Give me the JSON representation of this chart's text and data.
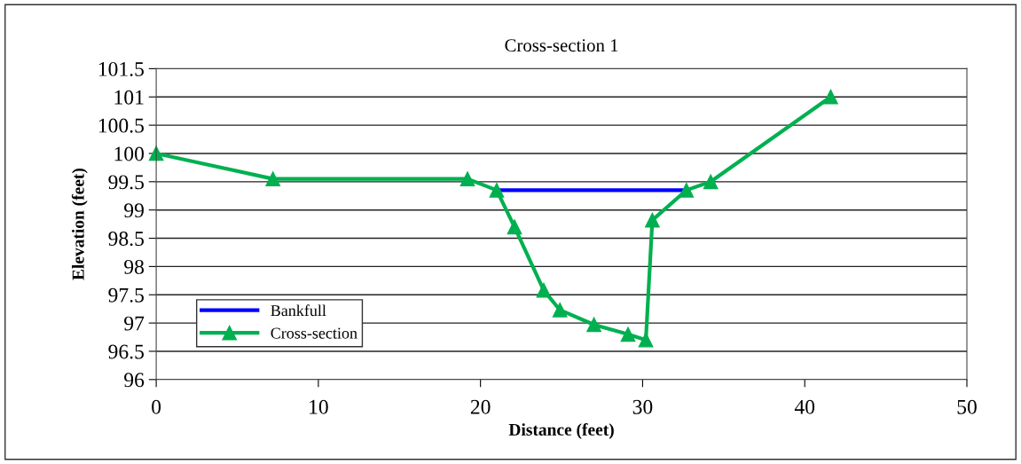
{
  "chart_data": {
    "type": "line",
    "title": "Cross-section 1",
    "xlabel": "Distance (feet)",
    "ylabel": "Elevation (feet)",
    "series": [
      {
        "name": "Bankfull",
        "color": "#0000ff",
        "x": [
          21.0,
          32.7
        ],
        "values": [
          99.35,
          99.35
        ],
        "marker": "none"
      },
      {
        "name": "Cross-section",
        "color": "#00b050",
        "x": [
          0,
          7.2,
          19.2,
          21.0,
          22.1,
          23.9,
          24.9,
          27.0,
          29.1,
          30.2,
          30.6,
          32.7,
          34.2,
          41.6
        ],
        "values": [
          100.0,
          99.55,
          99.55,
          99.35,
          98.7,
          97.58,
          97.23,
          96.97,
          96.8,
          96.7,
          98.82,
          99.35,
          99.5,
          101.0
        ],
        "marker": "triangle"
      }
    ],
    "xlim": [
      0,
      50
    ],
    "xticks": [
      0,
      10,
      20,
      30,
      40,
      50
    ],
    "ylim": [
      96,
      101.5
    ],
    "yticks": [
      96,
      96.5,
      97,
      97.5,
      98,
      98.5,
      99,
      99.5,
      100,
      100.5,
      101,
      101.5
    ],
    "grid": "y",
    "legend": "bottom left",
    "line_style": "solid"
  }
}
